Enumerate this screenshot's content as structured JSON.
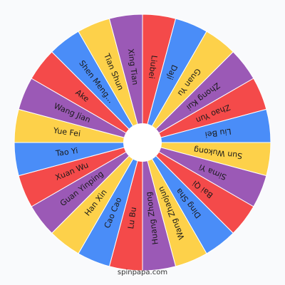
{
  "wheel": {
    "segments": [
      {
        "label": "Liubei",
        "color": "#f44a4a"
      },
      {
        "label": "Daji",
        "color": "#4a8df8"
      },
      {
        "label": "Guan Yu",
        "color": "#fdd14a"
      },
      {
        "label": "Zhong Kui",
        "color": "#9b59b6"
      },
      {
        "label": "Zhao Yun",
        "color": "#f44a4a"
      },
      {
        "label": "Liu Bei",
        "color": "#4a8df8"
      },
      {
        "label": "Sun Wukong",
        "color": "#fdd14a"
      },
      {
        "label": "Sima Yi",
        "color": "#9b59b6"
      },
      {
        "label": "Bai Qi",
        "color": "#f44a4a"
      },
      {
        "label": "Ding Sha",
        "color": "#4a8df8"
      },
      {
        "label": "Wang Zhaojun",
        "color": "#fdd14a"
      },
      {
        "label": "Huang Zhong",
        "color": "#9b59b6"
      },
      {
        "label": "Lu Bu",
        "color": "#f44a4a"
      },
      {
        "label": "Cao Cao",
        "color": "#4a8df8"
      },
      {
        "label": "Han Xin",
        "color": "#fdd14a"
      },
      {
        "label": "Guan Yinping",
        "color": "#9b59b6"
      },
      {
        "label": "Xuan Wu",
        "color": "#f44a4a"
      },
      {
        "label": "Tao Yi",
        "color": "#4a8df8"
      },
      {
        "label": "Yue Fei",
        "color": "#fdd14a"
      },
      {
        "label": "Wang Jian",
        "color": "#9b59b6"
      },
      {
        "label": "Ake",
        "color": "#f44a4a"
      },
      {
        "label": "Shen Meng...",
        "color": "#4a8df8"
      },
      {
        "label": "Tian Shun",
        "color": "#fdd14a"
      },
      {
        "label": "Xing Tian",
        "color": "#9b59b6"
      }
    ],
    "hub_color": "#ffffff",
    "border_color": "#ffffff"
  },
  "footer": {
    "text": "spinpapa.com"
  }
}
